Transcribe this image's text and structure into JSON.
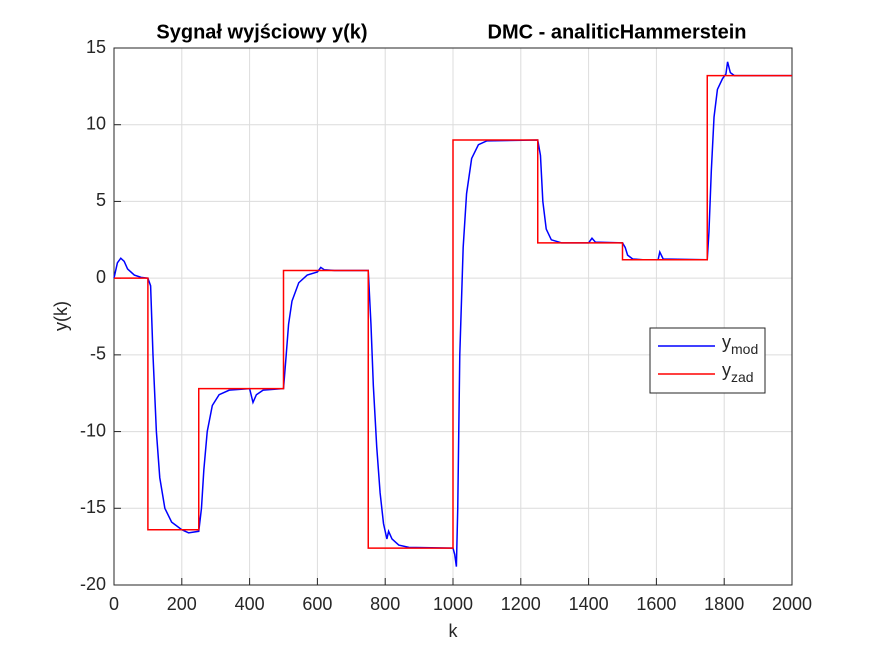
{
  "chart_data": {
    "type": "line",
    "title": [
      "Sygnał wyjściowy y(k)",
      "DMC - analiticHammerstein"
    ],
    "x_label": "k",
    "y_label": "y(k)",
    "xlim": [
      0,
      2000
    ],
    "xticks": [
      0,
      200,
      400,
      600,
      800,
      1000,
      1200,
      1400,
      1600,
      1800,
      2000
    ],
    "ylim": [
      -20,
      15
    ],
    "yticks": [
      -20,
      -15,
      -10,
      -5,
      0,
      5,
      10,
      15
    ],
    "grid": true,
    "legend": "east",
    "series": [
      {
        "name": "ymod",
        "color": "#0000ff",
        "x": [
          0,
          10,
          20,
          30,
          40,
          60,
          80,
          100,
          108,
          115,
          125,
          135,
          150,
          170,
          200,
          220,
          250,
          258,
          265,
          275,
          290,
          310,
          340,
          400,
          410,
          420,
          440,
          500,
          508,
          515,
          525,
          545,
          570,
          600,
          610,
          620,
          650,
          750,
          758,
          765,
          775,
          785,
          795,
          805,
          810,
          820,
          840,
          870,
          1000,
          1005,
          1010,
          1014,
          1020,
          1030,
          1040,
          1055,
          1075,
          1100,
          1250,
          1258,
          1265,
          1275,
          1290,
          1320,
          1400,
          1410,
          1420,
          1500,
          1508,
          1515,
          1530,
          1560,
          1605,
          1610,
          1620,
          1750,
          1755,
          1762,
          1770,
          1780,
          1795,
          1805,
          1810,
          1818,
          1830,
          2000
        ],
        "values": [
          0,
          1.0,
          1.3,
          1.1,
          0.6,
          0.2,
          0.05,
          0,
          -0.5,
          -5,
          -10,
          -13,
          -15,
          -15.9,
          -16.4,
          -16.6,
          -16.5,
          -15,
          -12.5,
          -10,
          -8.3,
          -7.6,
          -7.3,
          -7.2,
          -8.1,
          -7.6,
          -7.3,
          -7.2,
          -5,
          -3,
          -1.5,
          -0.3,
          0.2,
          0.4,
          0.7,
          0.55,
          0.5,
          0.5,
          -3,
          -7,
          -11,
          -14,
          -16,
          -17,
          -16.5,
          -17,
          -17.4,
          -17.55,
          -17.6,
          -18,
          -18.8,
          -15,
          -5,
          2,
          5.5,
          7.8,
          8.7,
          8.95,
          9,
          8,
          5,
          3.2,
          2.5,
          2.3,
          2.3,
          2.6,
          2.35,
          2.3,
          2.0,
          1.5,
          1.25,
          1.2,
          1.2,
          1.7,
          1.25,
          1.2,
          3,
          7,
          10.5,
          12.3,
          13.0,
          13.3,
          14.1,
          13.4,
          13.2,
          13.2
        ]
      },
      {
        "name": "yzad",
        "color": "#ff0000",
        "x": [
          0,
          100,
          100,
          250,
          250,
          500,
          500,
          750,
          750,
          1000,
          1000,
          1250,
          1250,
          1500,
          1500,
          1750,
          1750,
          2000
        ],
        "values": [
          0,
          0,
          -16.4,
          -16.4,
          -7.2,
          -7.2,
          0.5,
          0.5,
          -17.6,
          -17.6,
          9,
          9,
          2.3,
          2.3,
          1.2,
          1.2,
          13.2,
          13.2
        ]
      }
    ]
  }
}
